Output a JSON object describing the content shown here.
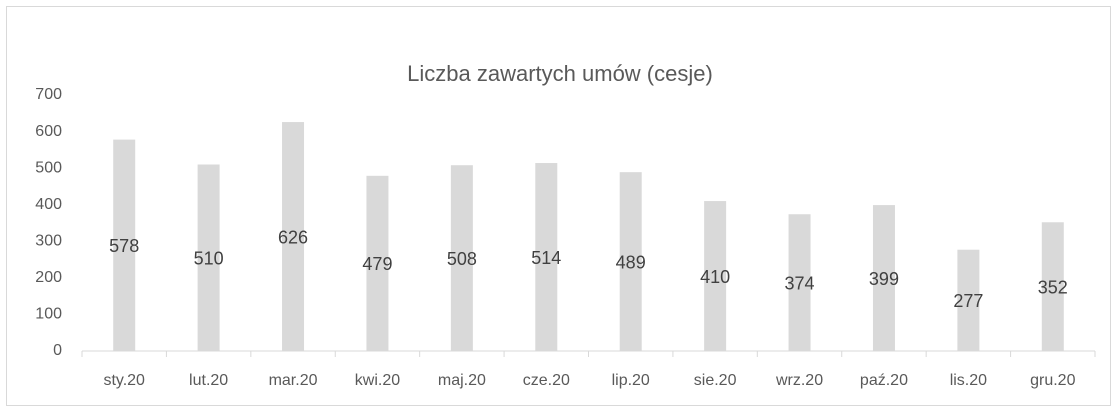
{
  "chart_data": {
    "type": "bar",
    "title": "Liczba zawartych umów (cesje)",
    "categories": [
      "sty.20",
      "lut.20",
      "mar.20",
      "kwi.20",
      "maj.20",
      "cze.20",
      "lip.20",
      "sie.20",
      "wrz.20",
      "paź.20",
      "lis.20",
      "gru.20"
    ],
    "values": [
      578,
      510,
      626,
      479,
      508,
      514,
      489,
      410,
      374,
      399,
      277,
      352
    ],
    "color": "#d9d9d9",
    "ylim": [
      0,
      700
    ],
    "yticks": [
      0,
      100,
      200,
      300,
      400,
      500,
      600,
      700
    ],
    "grid": false
  }
}
